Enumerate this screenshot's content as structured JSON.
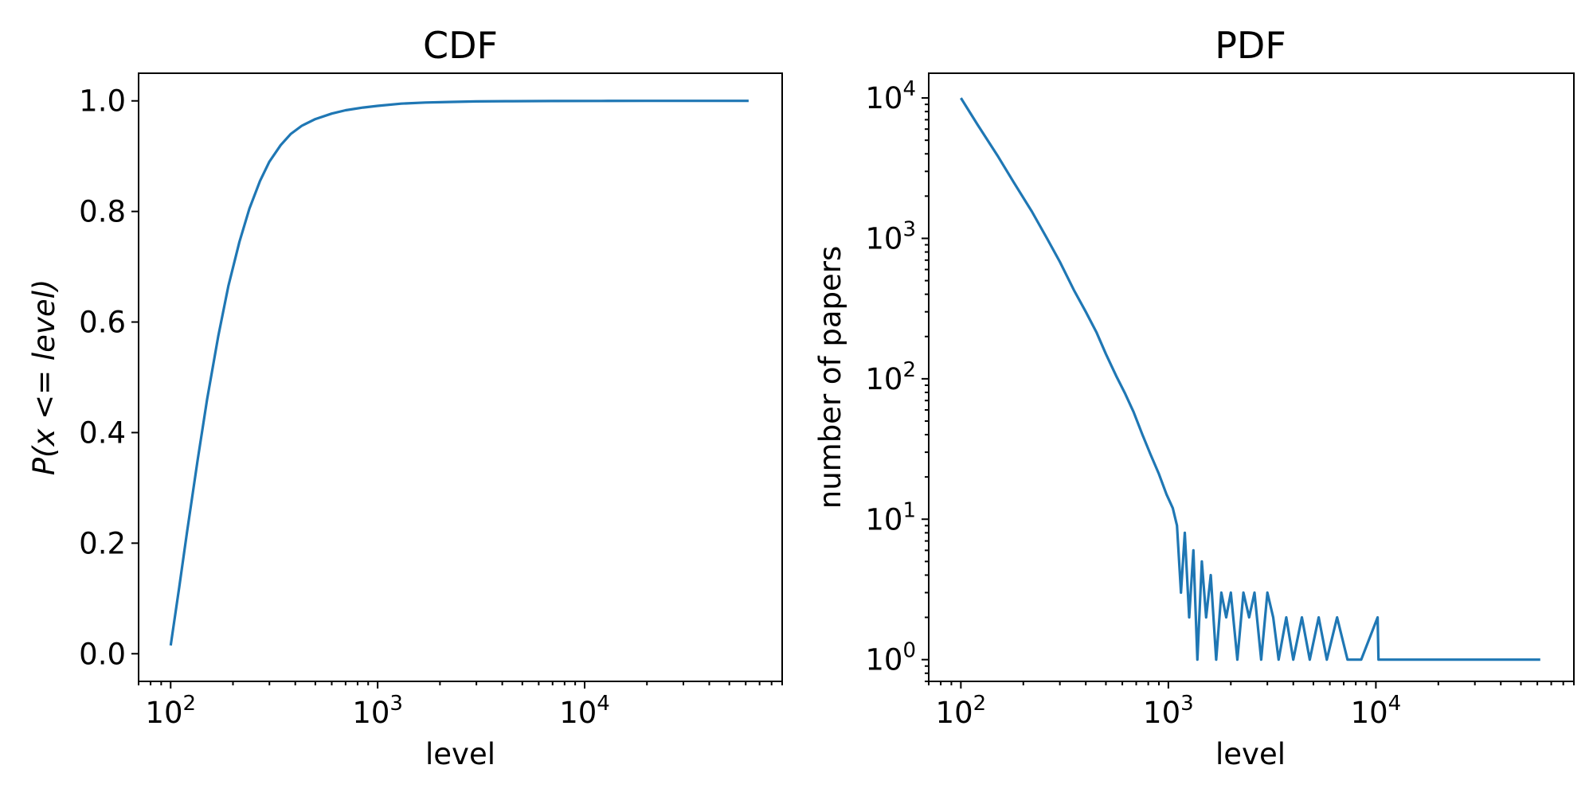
{
  "chart_data": [
    {
      "type": "line",
      "title": "CDF",
      "xlabel": "level",
      "ylabel": "P(x <= level)",
      "xscale": "log",
      "xlim": [
        70,
        90000
      ],
      "ylim": [
        -0.05,
        1.05
      ],
      "grid": false,
      "color": "#1f77b4",
      "x_ticks": [
        {
          "base": "10",
          "exp": "2",
          "value": 100
        },
        {
          "base": "10",
          "exp": "3",
          "value": 1000
        },
        {
          "base": "10",
          "exp": "4",
          "value": 10000
        }
      ],
      "y_ticks": [
        {
          "label": "0.0",
          "value": 0.0
        },
        {
          "label": "0.2",
          "value": 0.2
        },
        {
          "label": "0.4",
          "value": 0.4
        },
        {
          "label": "0.6",
          "value": 0.6
        },
        {
          "label": "0.8",
          "value": 0.8
        },
        {
          "label": "1.0",
          "value": 1.0
        }
      ],
      "x": [
        100,
        110,
        120,
        135,
        150,
        170,
        190,
        215,
        240,
        270,
        300,
        340,
        380,
        430,
        500,
        600,
        700,
        850,
        1000,
        1300,
        1700,
        2200,
        3000,
        4500,
        7000,
        12000,
        20000,
        35000,
        62000
      ],
      "y": [
        0.015,
        0.12,
        0.22,
        0.35,
        0.46,
        0.575,
        0.665,
        0.745,
        0.805,
        0.855,
        0.89,
        0.92,
        0.94,
        0.955,
        0.967,
        0.977,
        0.983,
        0.988,
        0.991,
        0.995,
        0.997,
        0.998,
        0.999,
        0.9995,
        0.9998,
        0.9999,
        1.0,
        1.0,
        1.0
      ]
    },
    {
      "type": "line",
      "title": "PDF",
      "xlabel": "level",
      "ylabel": "number of papers",
      "xscale": "log",
      "yscale": "log",
      "xlim": [
        70,
        90000
      ],
      "ylim": [
        0.7,
        15000
      ],
      "grid": false,
      "color": "#1f77b4",
      "x_ticks": [
        {
          "base": "10",
          "exp": "2",
          "value": 100
        },
        {
          "base": "10",
          "exp": "3",
          "value": 1000
        },
        {
          "base": "10",
          "exp": "4",
          "value": 10000
        }
      ],
      "y_ticks": [
        {
          "base": "10",
          "exp": "0",
          "value": 1
        },
        {
          "base": "10",
          "exp": "1",
          "value": 10
        },
        {
          "base": "10",
          "exp": "2",
          "value": 100
        },
        {
          "base": "10",
          "exp": "3",
          "value": 1000
        },
        {
          "base": "10",
          "exp": "4",
          "value": 10000
        }
      ],
      "x": [
        100,
        120,
        150,
        180,
        220,
        260,
        300,
        350,
        400,
        450,
        500,
        560,
        620,
        680,
        750,
        820,
        900,
        980,
        1050,
        1100,
        1150,
        1200,
        1260,
        1320,
        1380,
        1450,
        1520,
        1600,
        1700,
        1800,
        1900,
        2000,
        2150,
        2300,
        2450,
        2600,
        2800,
        3000,
        3200,
        3400,
        3700,
        4000,
        4400,
        4800,
        5300,
        5800,
        6500,
        7300,
        8500,
        10200,
        10300,
        12000,
        20000,
        35000,
        62000
      ],
      "y": [
        10000,
        6500,
        3900,
        2500,
        1550,
        1000,
        680,
        430,
        300,
        215,
        150,
        105,
        78,
        58,
        40,
        29,
        21,
        15,
        12,
        9,
        3,
        8,
        2,
        6,
        1,
        5,
        2,
        4,
        1,
        3,
        2,
        3,
        1,
        3,
        2,
        3,
        1,
        3,
        2,
        1,
        2,
        1,
        2,
        1,
        2,
        1,
        2,
        1,
        1,
        2,
        1,
        1,
        1,
        1,
        1
      ]
    }
  ]
}
